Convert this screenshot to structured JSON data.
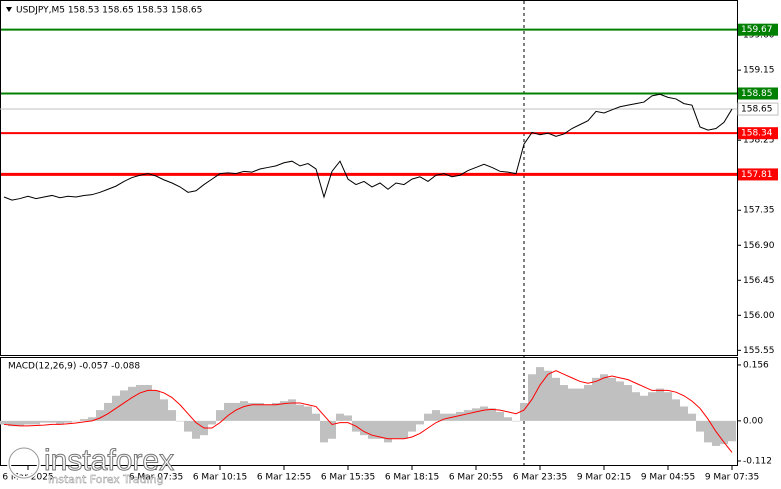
{
  "chart_data": [
    {
      "type": "line",
      "title": "USDJPY,M5  158.53 158.65 158.53 158.65",
      "series": [
        {
          "color": "#000000",
          "values": [
            157.52,
            157.48,
            157.5,
            157.53,
            157.5,
            157.52,
            157.54,
            157.51,
            157.53,
            157.52,
            157.54,
            157.55,
            157.58,
            157.62,
            157.66,
            157.72,
            157.77,
            157.8,
            157.82,
            157.79,
            157.74,
            157.7,
            157.65,
            157.58,
            157.6,
            157.68,
            157.75,
            157.82,
            157.83,
            157.82,
            157.85,
            157.84,
            157.88,
            157.9,
            157.92,
            157.96,
            157.98,
            157.92,
            157.95,
            157.88,
            157.52,
            157.85,
            157.98,
            157.75,
            157.68,
            157.72,
            157.65,
            157.7,
            157.62,
            157.7,
            157.68,
            157.75,
            157.78,
            157.72,
            157.8,
            157.82,
            157.78,
            157.8,
            157.86,
            157.9,
            157.94,
            157.9,
            157.85,
            157.84,
            157.82,
            158.2,
            158.35,
            158.32,
            158.34,
            158.3,
            158.33,
            158.4,
            158.45,
            158.5,
            158.62,
            158.6,
            158.64,
            158.68,
            158.7,
            158.72,
            158.74,
            158.82,
            158.84,
            158.8,
            158.78,
            158.72,
            158.7,
            158.42,
            158.38,
            158.4,
            158.48,
            158.65
          ]
        }
      ],
      "ylim": [
        155.49,
        159.82
      ],
      "yticks": [
        {
          "value": 159.6,
          "label": "159.60"
        },
        159.15,
        158.25,
        157.35,
        {
          "value": 156.9,
          "label": "156.90"
        },
        156.45,
        {
          "value": 156.0,
          "label": "156.00"
        },
        155.55
      ],
      "levels": [
        {
          "value": 159.67,
          "color": "#008000"
        },
        {
          "value": 158.85,
          "color": "#008000"
        },
        {
          "value": 158.34,
          "color": "#ff0000"
        },
        {
          "value": 157.81,
          "color": "#ff0000"
        }
      ],
      "bid": 158.65,
      "grid": false
    },
    {
      "type": "macd",
      "title": "MACD(12,26,9) -0.057 -0.088",
      "categories": [
        null,
        null,
        null,
        "6 Mar 2025",
        null,
        null,
        null,
        null,
        null,
        null,
        null,
        null,
        null,
        null,
        null,
        null,
        null,
        null,
        null,
        "6 Mar 07:35",
        null,
        null,
        null,
        null,
        null,
        null,
        null,
        "6 Mar 10:15",
        null,
        null,
        null,
        null,
        null,
        null,
        null,
        "6 Mar 12:55",
        null,
        null,
        null,
        null,
        null,
        null,
        null,
        "6 Mar 15:35",
        null,
        null,
        null,
        null,
        null,
        null,
        null,
        "6 Mar 18:15",
        null,
        null,
        null,
        null,
        null,
        null,
        null,
        "6 Mar 20:55",
        null,
        null,
        null,
        null,
        null,
        null,
        null,
        "6 Mar 23:35",
        null,
        null,
        null,
        null,
        null,
        null,
        null,
        "9 Mar 02:15",
        null,
        null,
        null,
        null,
        null,
        null,
        null,
        "9 Mar 04:55",
        null,
        null,
        null,
        null,
        null,
        null,
        null,
        "9 Mar 07:35"
      ],
      "series": [
        {
          "color": "#c0c0c0",
          "values": [
            -0.01,
            -0.015,
            -0.015,
            -0.01,
            -0.01,
            -0.005,
            -0.005,
            -0.01,
            -0.005,
            0,
            0.005,
            0.01,
            0.03,
            0.05,
            0.07,
            0.085,
            0.095,
            0.1,
            0.1,
            0.085,
            0.06,
            0.03,
            0,
            -0.03,
            -0.05,
            -0.04,
            -0.01,
            0.03,
            0.05,
            0.05,
            0.055,
            0.05,
            0.05,
            0.045,
            0.05,
            0.055,
            0.06,
            0.045,
            0.04,
            0.02,
            -0.06,
            -0.05,
            0.02,
            0.015,
            -0.03,
            -0.04,
            -0.05,
            -0.05,
            -0.06,
            -0.05,
            -0.05,
            -0.03,
            -0.01,
            0.02,
            0.03,
            0.02,
            0.02,
            0.025,
            0.03,
            0.035,
            0.04,
            0.035,
            0.025,
            0.01,
            0,
            0.05,
            0.13,
            0.15,
            0.14,
            0.12,
            0.1,
            0.09,
            0.09,
            0.1,
            0.12,
            0.13,
            0.12,
            0.11,
            0.1,
            0.08,
            0.07,
            0.08,
            0.09,
            0.08,
            0.06,
            0.04,
            0.02,
            -0.03,
            -0.06,
            -0.07,
            -0.065,
            -0.057
          ]
        },
        {
          "color": "#ff0000",
          "values": [
            -0.01,
            -0.012,
            -0.014,
            -0.014,
            -0.013,
            -0.012,
            -0.01,
            -0.01,
            -0.008,
            -0.006,
            -0.003,
            0,
            0.008,
            0.02,
            0.035,
            0.05,
            0.065,
            0.078,
            0.085,
            0.085,
            0.078,
            0.065,
            0.045,
            0.02,
            -0.005,
            -0.02,
            -0.02,
            -0.005,
            0.015,
            0.03,
            0.04,
            0.045,
            0.045,
            0.045,
            0.045,
            0.048,
            0.05,
            0.05,
            0.045,
            0.04,
            0.015,
            -0.01,
            -0.005,
            -0.005,
            -0.015,
            -0.03,
            -0.04,
            -0.045,
            -0.05,
            -0.05,
            -0.05,
            -0.045,
            -0.035,
            -0.02,
            -0.005,
            0.005,
            0.01,
            0.015,
            0.02,
            0.025,
            0.03,
            0.032,
            0.03,
            0.025,
            0.02,
            0.03,
            0.06,
            0.1,
            0.13,
            0.14,
            0.13,
            0.12,
            0.11,
            0.105,
            0.11,
            0.12,
            0.125,
            0.12,
            0.115,
            0.105,
            0.095,
            0.085,
            0.085,
            0.085,
            0.08,
            0.07,
            0.055,
            0.035,
            0.005,
            -0.03,
            -0.06,
            -0.088
          ]
        }
      ],
      "ylim": [
        -0.126,
        0.181
      ],
      "yticks": [
        0.156,
        {
          "value": 0,
          "label": "0.00"
        },
        -0.112
      ]
    }
  ],
  "watermark": {
    "brand": "instaforex",
    "tagline": "Instant Forex Trading"
  }
}
